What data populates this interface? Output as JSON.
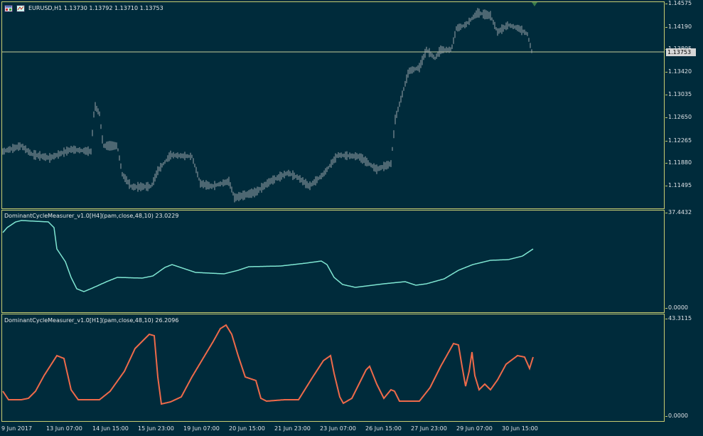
{
  "main_pane": {
    "symbol_info": "EURUSD,H1  1.13730 1.13792 1.13710 1.13753",
    "price_axis": [
      "1.14575",
      "1.14190",
      "1.13805",
      "1.13420",
      "1.13035",
      "1.12650",
      "1.12265",
      "1.11880",
      "1.11495"
    ],
    "current_price": "1.13753"
  },
  "indicator_h4": {
    "label": "DominantCycleMeasurer_v1.0[H4](pam,close,48,10) 23.0229",
    "axis": [
      "37.4432",
      "0.0000"
    ],
    "line_color": "#7fe6d2"
  },
  "indicator_h1": {
    "label": "DominantCycleMeasurer_v1.0[H1](pam,close,48,10) 26.2096",
    "axis": [
      "43.3115",
      "0.0000"
    ],
    "line_color": "#ee6a4a"
  },
  "time_axis": [
    "9 Jun 2017",
    "13 Jun 07:00",
    "14 Jun 15:00",
    "15 Jun 23:00",
    "19 Jun 07:00",
    "20 Jun 15:00",
    "21 Jun 23:00",
    "23 Jun 07:00",
    "26 Jun 15:00",
    "27 Jun 23:00",
    "29 Jun 07:00",
    "30 Jun 15:00"
  ],
  "colors": {
    "background": "#002b3b",
    "grid_border": "#c8cc72",
    "bars": "#9aa3a8",
    "price_line": "#c8cc9a"
  }
}
